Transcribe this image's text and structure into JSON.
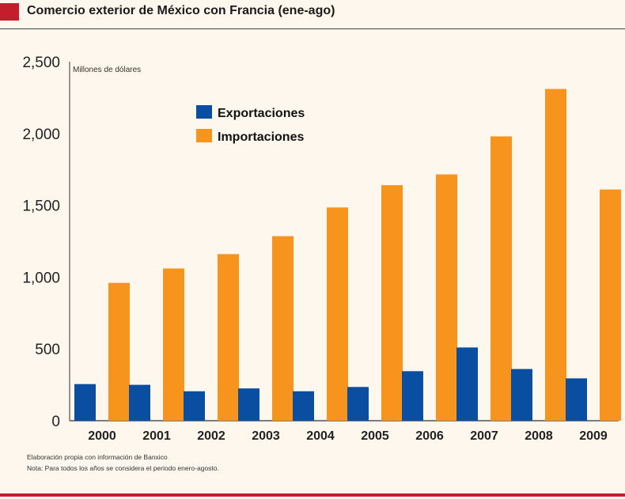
{
  "title": "Comercio exterior de México con Francia (ene-ago)",
  "footnotes": {
    "source": "Elaboración propia con información de Banxico",
    "note": "Nota: Para todos los años se considera el periodo enero-agosto."
  },
  "colors": {
    "accent": "#c41e2c",
    "exportaciones": "#0a4ea1",
    "importaciones": "#f7941d",
    "background": "#fdf7ee"
  },
  "chart_data": {
    "type": "bar",
    "title": "",
    "ylabel": "Millones de dólares",
    "xlabel": "",
    "ylim": [
      0,
      2500
    ],
    "yticks": [
      0,
      500,
      1000,
      1500,
      2000,
      2500
    ],
    "ytick_labels": [
      "0",
      "500",
      "1,000",
      "1,500",
      "2,000",
      "2,500"
    ],
    "categories": [
      "2000",
      "2001",
      "2002",
      "2003",
      "2004",
      "2005",
      "2006",
      "2007",
      "2008",
      "2009"
    ],
    "series": [
      {
        "name": "Exportaciones",
        "color": "#0a4ea1",
        "values": [
          255,
          250,
          205,
          225,
          205,
          235,
          345,
          510,
          360,
          295
        ]
      },
      {
        "name": "Importaciones",
        "color": "#f7941d",
        "values": [
          960,
          1060,
          1160,
          1285,
          1485,
          1640,
          1715,
          1980,
          2310,
          1610
        ]
      }
    ],
    "legend_position": "top-left",
    "grid": false
  }
}
